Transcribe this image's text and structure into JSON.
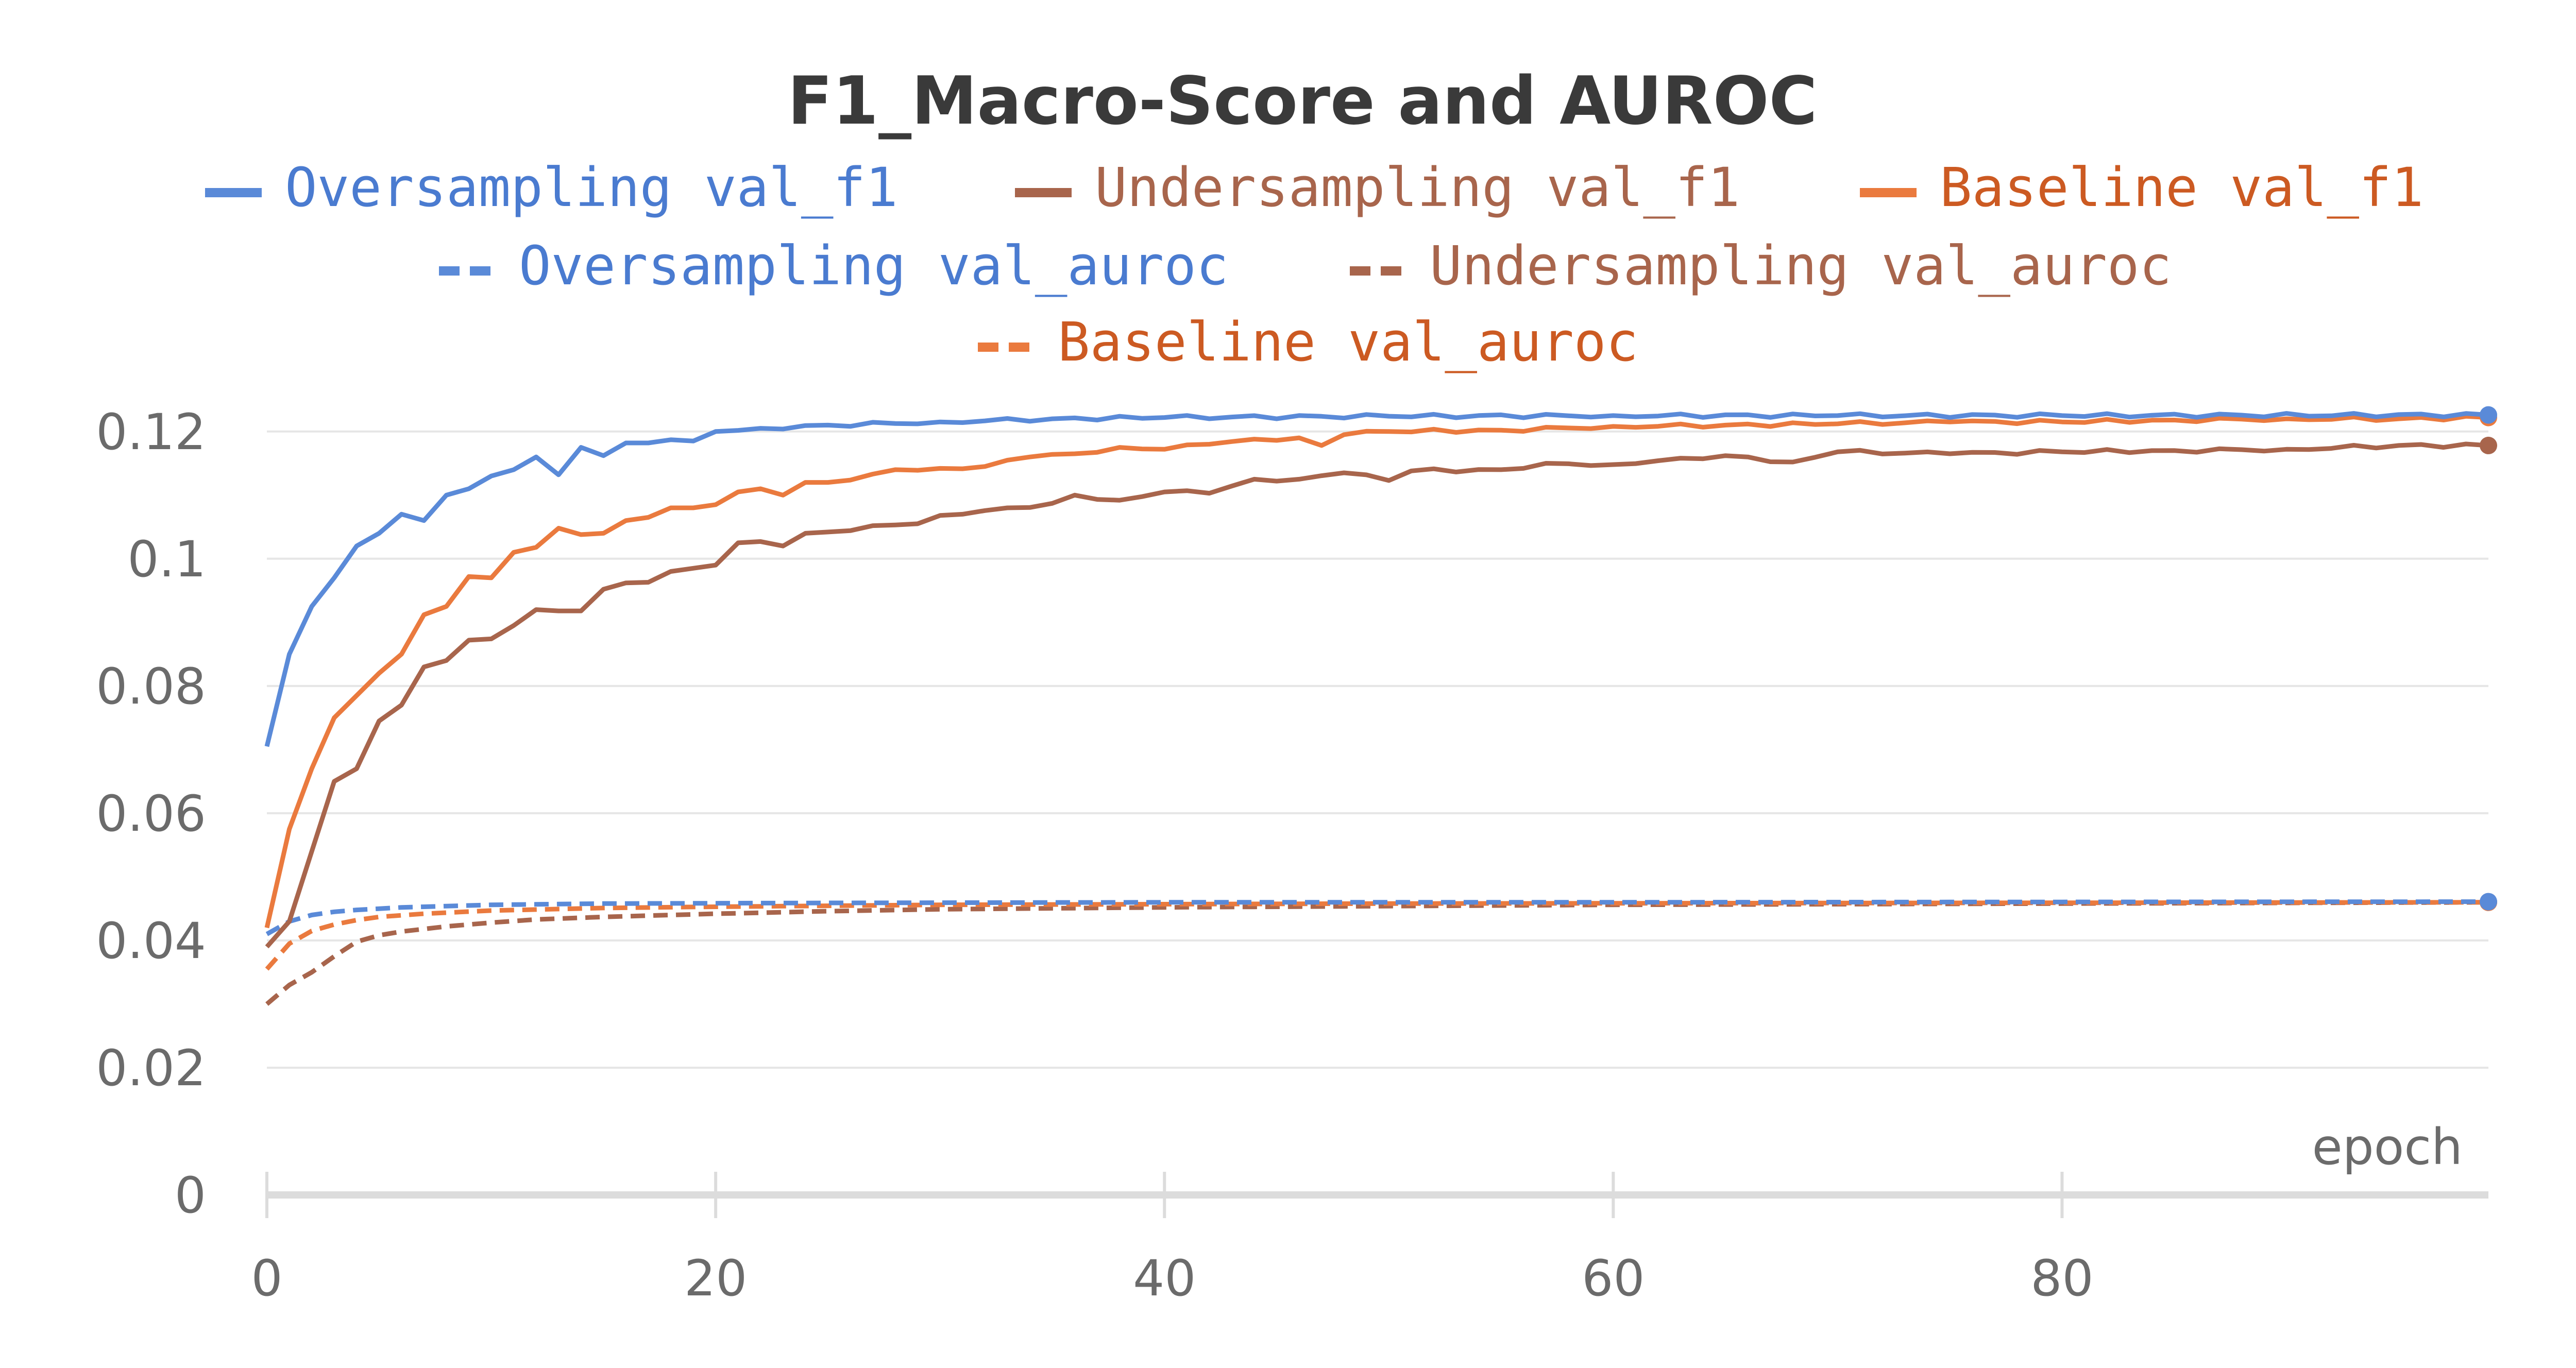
{
  "chart_data": {
    "type": "line",
    "title": "F1_Macro-Score and AUROC",
    "xlabel": "epoch",
    "ylabel": "",
    "xlim": [
      0,
      99
    ],
    "ylim": [
      0,
      0.125
    ],
    "x_ticks": [
      "0",
      "20",
      "40",
      "60",
      "80"
    ],
    "y_ticks": [
      "0",
      "0.02",
      "0.04",
      "0.06",
      "0.08",
      "0.1",
      "0.12"
    ],
    "grid": true,
    "legend_position": "top",
    "series": [
      {
        "name": "Oversampling val_f1",
        "color": "#5a8ad8",
        "dash": false,
        "anchors": [
          [
            0,
            0.0705
          ],
          [
            1,
            0.085
          ],
          [
            2,
            0.0925
          ],
          [
            3,
            0.097
          ],
          [
            4,
            0.102
          ],
          [
            5,
            0.104
          ],
          [
            6,
            0.107
          ],
          [
            7,
            0.106
          ],
          [
            8,
            0.11
          ],
          [
            9,
            0.111
          ],
          [
            10,
            0.113
          ],
          [
            11,
            0.114
          ],
          [
            12,
            0.116
          ],
          [
            13,
            0.1132
          ],
          [
            14,
            0.1175
          ],
          [
            15,
            0.1162
          ],
          [
            16,
            0.1182
          ],
          [
            17,
            0.1182
          ],
          [
            18,
            0.1187
          ],
          [
            19,
            0.1185
          ],
          [
            20,
            0.12
          ],
          [
            22,
            0.1205
          ],
          [
            25,
            0.121
          ],
          [
            30,
            0.1215
          ],
          [
            35,
            0.122
          ],
          [
            40,
            0.1222
          ],
          [
            50,
            0.1224
          ],
          [
            60,
            0.1225
          ],
          [
            70,
            0.1225
          ],
          [
            80,
            0.1225
          ],
          [
            99,
            0.1226
          ]
        ]
      },
      {
        "name": "Undersampling val_f1",
        "color": "#a8654c",
        "dash": false,
        "anchors": [
          [
            0,
            0.039
          ],
          [
            1,
            0.043
          ],
          [
            2,
            0.054
          ],
          [
            3,
            0.065
          ],
          [
            4,
            0.067
          ],
          [
            5,
            0.0745
          ],
          [
            6,
            0.077
          ],
          [
            7,
            0.083
          ],
          [
            8,
            0.084
          ],
          [
            9,
            0.0872
          ],
          [
            10,
            0.0874
          ],
          [
            11,
            0.0895
          ],
          [
            12,
            0.092
          ],
          [
            13,
            0.0918
          ],
          [
            14,
            0.0918
          ],
          [
            15,
            0.0952
          ],
          [
            16,
            0.0962
          ],
          [
            17,
            0.0963
          ],
          [
            18,
            0.098
          ],
          [
            19,
            0.0985
          ],
          [
            20,
            0.099
          ],
          [
            21,
            0.1025
          ],
          [
            22,
            0.1027
          ],
          [
            23,
            0.102
          ],
          [
            24,
            0.104
          ],
          [
            25,
            0.1042
          ],
          [
            27,
            0.1052
          ],
          [
            29,
            0.1055
          ],
          [
            30,
            0.1068
          ],
          [
            33,
            0.108
          ],
          [
            35,
            0.1087
          ],
          [
            36,
            0.11
          ],
          [
            38,
            0.1092
          ],
          [
            40,
            0.1105
          ],
          [
            42,
            0.1103
          ],
          [
            44,
            0.1125
          ],
          [
            46,
            0.1125
          ],
          [
            48,
            0.1135
          ],
          [
            50,
            0.1123
          ],
          [
            51,
            0.1138
          ],
          [
            55,
            0.114
          ],
          [
            57,
            0.115
          ],
          [
            60,
            0.1148
          ],
          [
            63,
            0.1158
          ],
          [
            65,
            0.1162
          ],
          [
            68,
            0.1152
          ],
          [
            70,
            0.1168
          ],
          [
            75,
            0.1165
          ],
          [
            80,
            0.1168
          ],
          [
            85,
            0.117
          ],
          [
            90,
            0.1172
          ],
          [
            95,
            0.1178
          ],
          [
            99,
            0.1178
          ]
        ]
      },
      {
        "name": "Baseline val_f1",
        "color": "#ea7a3e",
        "dash": false,
        "anchors": [
          [
            0,
            0.042
          ],
          [
            1,
            0.0575
          ],
          [
            2,
            0.067
          ],
          [
            3,
            0.075
          ],
          [
            4,
            0.0785
          ],
          [
            5,
            0.082
          ],
          [
            6,
            0.085
          ],
          [
            7,
            0.0912
          ],
          [
            8,
            0.0925
          ],
          [
            9,
            0.0972
          ],
          [
            10,
            0.097
          ],
          [
            11,
            0.101
          ],
          [
            12,
            0.1018
          ],
          [
            13,
            0.1048
          ],
          [
            14,
            0.1038
          ],
          [
            15,
            0.104
          ],
          [
            16,
            0.106
          ],
          [
            17,
            0.1065
          ],
          [
            18,
            0.108
          ],
          [
            19,
            0.108
          ],
          [
            20,
            0.1085
          ],
          [
            21,
            0.1105
          ],
          [
            22,
            0.111
          ],
          [
            23,
            0.11
          ],
          [
            24,
            0.112
          ],
          [
            25,
            0.112
          ],
          [
            27,
            0.1133
          ],
          [
            28,
            0.114
          ],
          [
            30,
            0.1142
          ],
          [
            32,
            0.1145
          ],
          [
            34,
            0.116
          ],
          [
            36,
            0.1165
          ],
          [
            38,
            0.1175
          ],
          [
            40,
            0.1172
          ],
          [
            42,
            0.118
          ],
          [
            44,
            0.1188
          ],
          [
            46,
            0.119
          ],
          [
            47,
            0.1178
          ],
          [
            48,
            0.1195
          ],
          [
            50,
            0.12
          ],
          [
            55,
            0.1202
          ],
          [
            60,
            0.1208
          ],
          [
            65,
            0.121
          ],
          [
            70,
            0.1212
          ],
          [
            75,
            0.1215
          ],
          [
            80,
            0.1215
          ],
          [
            85,
            0.1218
          ],
          [
            90,
            0.122
          ],
          [
            95,
            0.122
          ],
          [
            99,
            0.1222
          ]
        ]
      },
      {
        "name": "Oversampling val_auroc",
        "color": "#5a8ad8",
        "dash": true,
        "anchors": [
          [
            0,
            0.041
          ],
          [
            1,
            0.043
          ],
          [
            2,
            0.044
          ],
          [
            3,
            0.0445
          ],
          [
            4,
            0.0448
          ],
          [
            6,
            0.0452
          ],
          [
            10,
            0.0456
          ],
          [
            15,
            0.0458
          ],
          [
            25,
            0.0459
          ],
          [
            40,
            0.046
          ],
          [
            60,
            0.046
          ],
          [
            99,
            0.0461
          ]
        ]
      },
      {
        "name": "Undersampling val_auroc",
        "color": "#a8654c",
        "dash": true,
        "anchors": [
          [
            0,
            0.03
          ],
          [
            1,
            0.033
          ],
          [
            2,
            0.035
          ],
          [
            3,
            0.0375
          ],
          [
            4,
            0.0398
          ],
          [
            5,
            0.0408
          ],
          [
            6,
            0.0414
          ],
          [
            8,
            0.0422
          ],
          [
            10,
            0.0428
          ],
          [
            12,
            0.0433
          ],
          [
            15,
            0.0437
          ],
          [
            20,
            0.0442
          ],
          [
            25,
            0.0446
          ],
          [
            30,
            0.0449
          ],
          [
            40,
            0.0452
          ],
          [
            50,
            0.0454
          ],
          [
            60,
            0.0456
          ],
          [
            80,
            0.0458
          ],
          [
            99,
            0.046
          ]
        ]
      },
      {
        "name": "Baseline val_auroc",
        "color": "#ea7a3e",
        "dash": true,
        "anchors": [
          [
            0,
            0.0355
          ],
          [
            1,
            0.0395
          ],
          [
            2,
            0.0415
          ],
          [
            3,
            0.0425
          ],
          [
            4,
            0.0432
          ],
          [
            5,
            0.0437
          ],
          [
            7,
            0.0442
          ],
          [
            10,
            0.0447
          ],
          [
            15,
            0.0451
          ],
          [
            20,
            0.0453
          ],
          [
            30,
            0.0456
          ],
          [
            50,
            0.0458
          ],
          [
            99,
            0.046
          ]
        ]
      }
    ]
  }
}
